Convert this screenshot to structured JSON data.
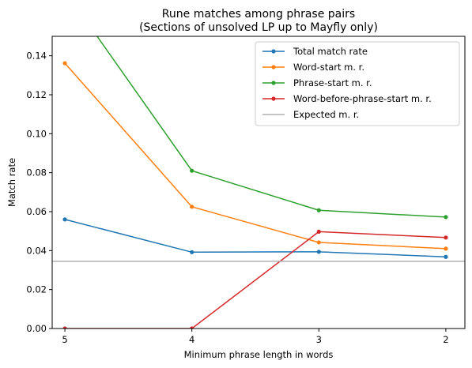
{
  "chart_data": {
    "type": "line",
    "title": [
      "Rune matches among phrase pairs",
      "(Sections of unsolved LP up to Mayfly only)"
    ],
    "xlabel": "Minimum phrase length in words",
    "ylabel": "Match rate",
    "x": [
      5,
      4,
      3,
      2
    ],
    "x_tick_labels": [
      "5",
      "4",
      "3",
      "2"
    ],
    "x_axis_reversed": true,
    "xlim": [
      5.1,
      1.85
    ],
    "ylim": [
      0,
      0.15
    ],
    "y_ticks": [
      0.0,
      0.02,
      0.04,
      0.06,
      0.08,
      0.1,
      0.12,
      0.14
    ],
    "y_tick_labels": [
      "0.00",
      "0.02",
      "0.04",
      "0.06",
      "0.08",
      "0.10",
      "0.12",
      "0.14"
    ],
    "grid": false,
    "legend_position": "upper-right",
    "series": [
      {
        "name": "Total match rate",
        "color": "#1f77b4",
        "values": [
          0.056,
          0.0392,
          0.0394,
          0.0368
        ],
        "marker": "dot"
      },
      {
        "name": "Word-start m. r.",
        "color": "#ff7f0e",
        "values": [
          0.1362,
          0.0625,
          0.0442,
          0.041
        ],
        "marker": "dot"
      },
      {
        "name": "Phrase-start m. r.",
        "color": "#2ca02c",
        "values": [
          0.1735,
          0.081,
          0.0607,
          0.0572
        ],
        "marker": "dot"
      },
      {
        "name": "Word-before-phrase-start m. r.",
        "color": "#d62728",
        "values": [
          0.0,
          0.0,
          0.0497,
          0.0467
        ],
        "marker": "dot"
      },
      {
        "name": "Expected m. r.",
        "color": "#b0b0b0",
        "constant": 0.0345,
        "marker": "none"
      }
    ]
  }
}
